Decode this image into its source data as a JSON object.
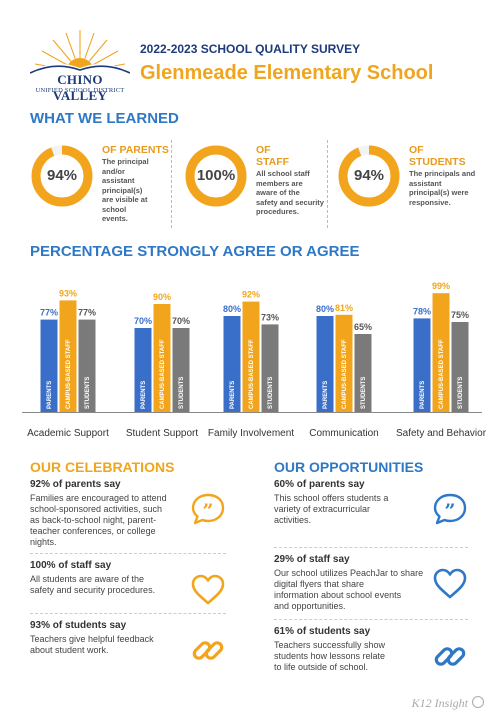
{
  "header": {
    "logo_name": "CHINO VALLEY",
    "logo_sub": "UNIFIED SCHOOL DISTRICT",
    "survey_title": "2022-2023 SCHOOL QUALITY SURVEY",
    "school_name": "Glenmeade Elementary School"
  },
  "learned": {
    "heading": "WHAT WE LEARNED",
    "stats": [
      {
        "pct": "94%",
        "value": 94,
        "of_line1": "OF  PARENTS",
        "of_line2": "",
        "desc": [
          "The principal",
          "and/or",
          "assistant",
          "principal(s)",
          "are visible at",
          "school",
          "events."
        ]
      },
      {
        "pct": "100%",
        "value": 100,
        "of_line1": "OF",
        "of_line2": "STAFF",
        "desc": [
          "All school staff",
          "members are",
          "aware of the",
          "safety and security",
          "procedures."
        ]
      },
      {
        "pct": "94%",
        "value": 94,
        "of_line1": "OF",
        "of_line2": "STUDENTS",
        "desc": [
          "The principals and",
          "assistant",
          "principal(s) were",
          "responsive."
        ]
      }
    ]
  },
  "chart_heading": "PERCENTAGE STRONGLY AGREE OR AGREE",
  "chart_data": {
    "type": "bar",
    "categories": [
      "Academic Support",
      "Student Support",
      "Family Involvement",
      "Communication",
      "Safety and Behavior"
    ],
    "series": [
      {
        "name": "PARENTS",
        "values": [
          77,
          70,
          80,
          80,
          78
        ]
      },
      {
        "name": "CAMPUS-BASED STAFF",
        "values": [
          93,
          90,
          92,
          81,
          99
        ]
      },
      {
        "name": "STUDENTS",
        "values": [
          77,
          70,
          73,
          65,
          75
        ]
      }
    ],
    "ylim": [
      0,
      100
    ],
    "colors": [
      "#3a6fc9",
      "#f2a51c",
      "#7a7a7a"
    ],
    "grid": false,
    "legend": "none"
  },
  "celebrations": {
    "heading": "OUR CELEBRATIONS",
    "items": [
      {
        "say": "92% of parents say",
        "icon": "quote-bubble-icon",
        "lines": [
          "Families are encouraged to attend",
          "school-sponsored activities, such",
          "as back-to-school night, parent-",
          "teacher conferences, or college",
          "nights."
        ]
      },
      {
        "say": "100% of staff say",
        "icon": "heart-icon",
        "lines": [
          "All students are aware of the",
          "safety and security procedures."
        ]
      },
      {
        "say": "93% of students say",
        "icon": "chain-link-icon",
        "lines": [
          "Teachers give helpful feedback",
          "about student work."
        ]
      }
    ]
  },
  "opportunities": {
    "heading": "OUR OPPORTUNITIES",
    "items": [
      {
        "say": "60% of parents say",
        "icon": "quote-bubble-icon",
        "lines": [
          "This school offers students a",
          "variety of extracurricular",
          "activities."
        ]
      },
      {
        "say": "29% of staff say",
        "icon": "heart-icon",
        "lines": [
          "Our school utilizes PeachJar to share",
          "digital flyers that share",
          "information about school events",
          "and opportunities."
        ]
      },
      {
        "say": "61% of students say",
        "icon": "chain-link-icon",
        "lines": [
          "Teachers successfully show",
          "students how lessons relate",
          "to life outside of school."
        ]
      }
    ]
  },
  "footer": {
    "brand": "K12 Insight"
  }
}
